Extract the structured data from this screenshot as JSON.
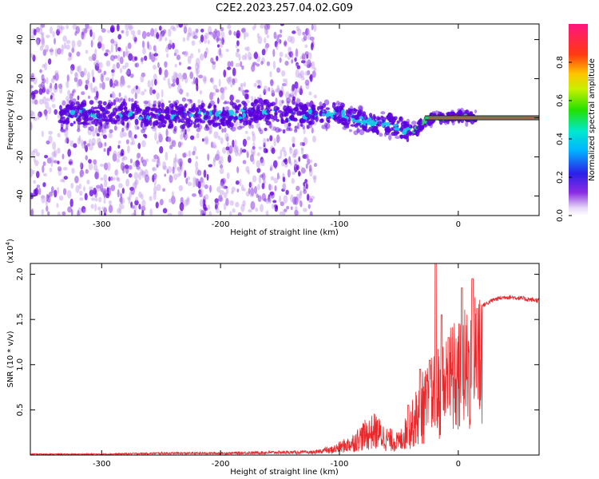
{
  "title": "C2E2.2023.257.04.02.G09",
  "chart_data": [
    {
      "type": "heatmap",
      "xlabel": "Height of straight line (km)",
      "ylabel": "Frequency (Hz)",
      "xlim": [
        -360,
        68
      ],
      "ylim": [
        -50,
        48
      ],
      "x_ticks": [
        -300,
        -200,
        -100,
        0
      ],
      "y_ticks": [
        -40,
        -20,
        0,
        20,
        40
      ],
      "grid": false,
      "description_points": {
        "noise_region_x": [
          -360,
          -128
        ],
        "frequency_center_track": {
          "x": [
            -330,
            -280,
            -240,
            -200,
            -170,
            -140,
            -120,
            -100,
            -90,
            -80,
            -70,
            -60,
            -50,
            -42,
            -35,
            -30,
            -25,
            -20,
            -10,
            0,
            10,
            68
          ],
          "y": [
            2,
            2,
            1,
            1,
            3,
            1,
            2,
            2,
            0,
            -2,
            -3,
            -3,
            -5,
            -7,
            -6,
            -3,
            -1,
            0,
            0,
            1,
            0,
            0
          ]
        }
      },
      "colorbar": {
        "label": "Normalized spectral amplitude",
        "ticks": [
          0.0,
          0.2,
          0.4,
          0.6,
          0.8
        ],
        "range": [
          0,
          1
        ]
      }
    },
    {
      "type": "line",
      "xlabel": "Height of straight line (km)",
      "ylabel": "SNR (10 * v/v)",
      "scale_note": "(x10",
      "scale_exp": "4",
      "xlim": [
        -360,
        68
      ],
      "ylim": [
        0,
        2.12
      ],
      "x_ticks": [
        -300,
        -200,
        -100,
        0
      ],
      "y_ticks": [
        0.5,
        1.0,
        1.5,
        2.0
      ],
      "grid": false,
      "series": [
        {
          "color": "#e8282b",
          "envelope": {
            "x": [
              -360,
              -300,
              -250,
              -200,
              -150,
              -120,
              -110,
              -100,
              -90,
              -80,
              -70,
              -60,
              -50,
              -40,
              -30,
              -25,
              -20,
              -15,
              -10,
              -5,
              0,
              5,
              10,
              15,
              20,
              30,
              40,
              50,
              60,
              68
            ],
            "y": [
              0.01,
              0.01,
              0.02,
              0.02,
              0.03,
              0.03,
              0.06,
              0.12,
              0.18,
              0.3,
              0.38,
              0.25,
              0.2,
              0.45,
              0.75,
              0.8,
              0.95,
              1.0,
              1.1,
              1.2,
              1.2,
              1.3,
              1.4,
              1.55,
              1.65,
              1.72,
              1.75,
              1.74,
              1.72,
              1.71
            ]
          },
          "spikes": [
            {
              "x": -42,
              "y": 0.55
            },
            {
              "x": -32,
              "y": 0.95
            },
            {
              "x": -24,
              "y": 1.05
            },
            {
              "x": -19,
              "y": 2.12
            },
            {
              "x": -14,
              "y": 1.55
            },
            {
              "x": -8,
              "y": 1.3
            },
            {
              "x": 3,
              "y": 1.85
            },
            {
              "x": 12,
              "y": 1.95
            },
            {
              "x": 16,
              "y": 1.62
            }
          ]
        }
      ]
    }
  ]
}
